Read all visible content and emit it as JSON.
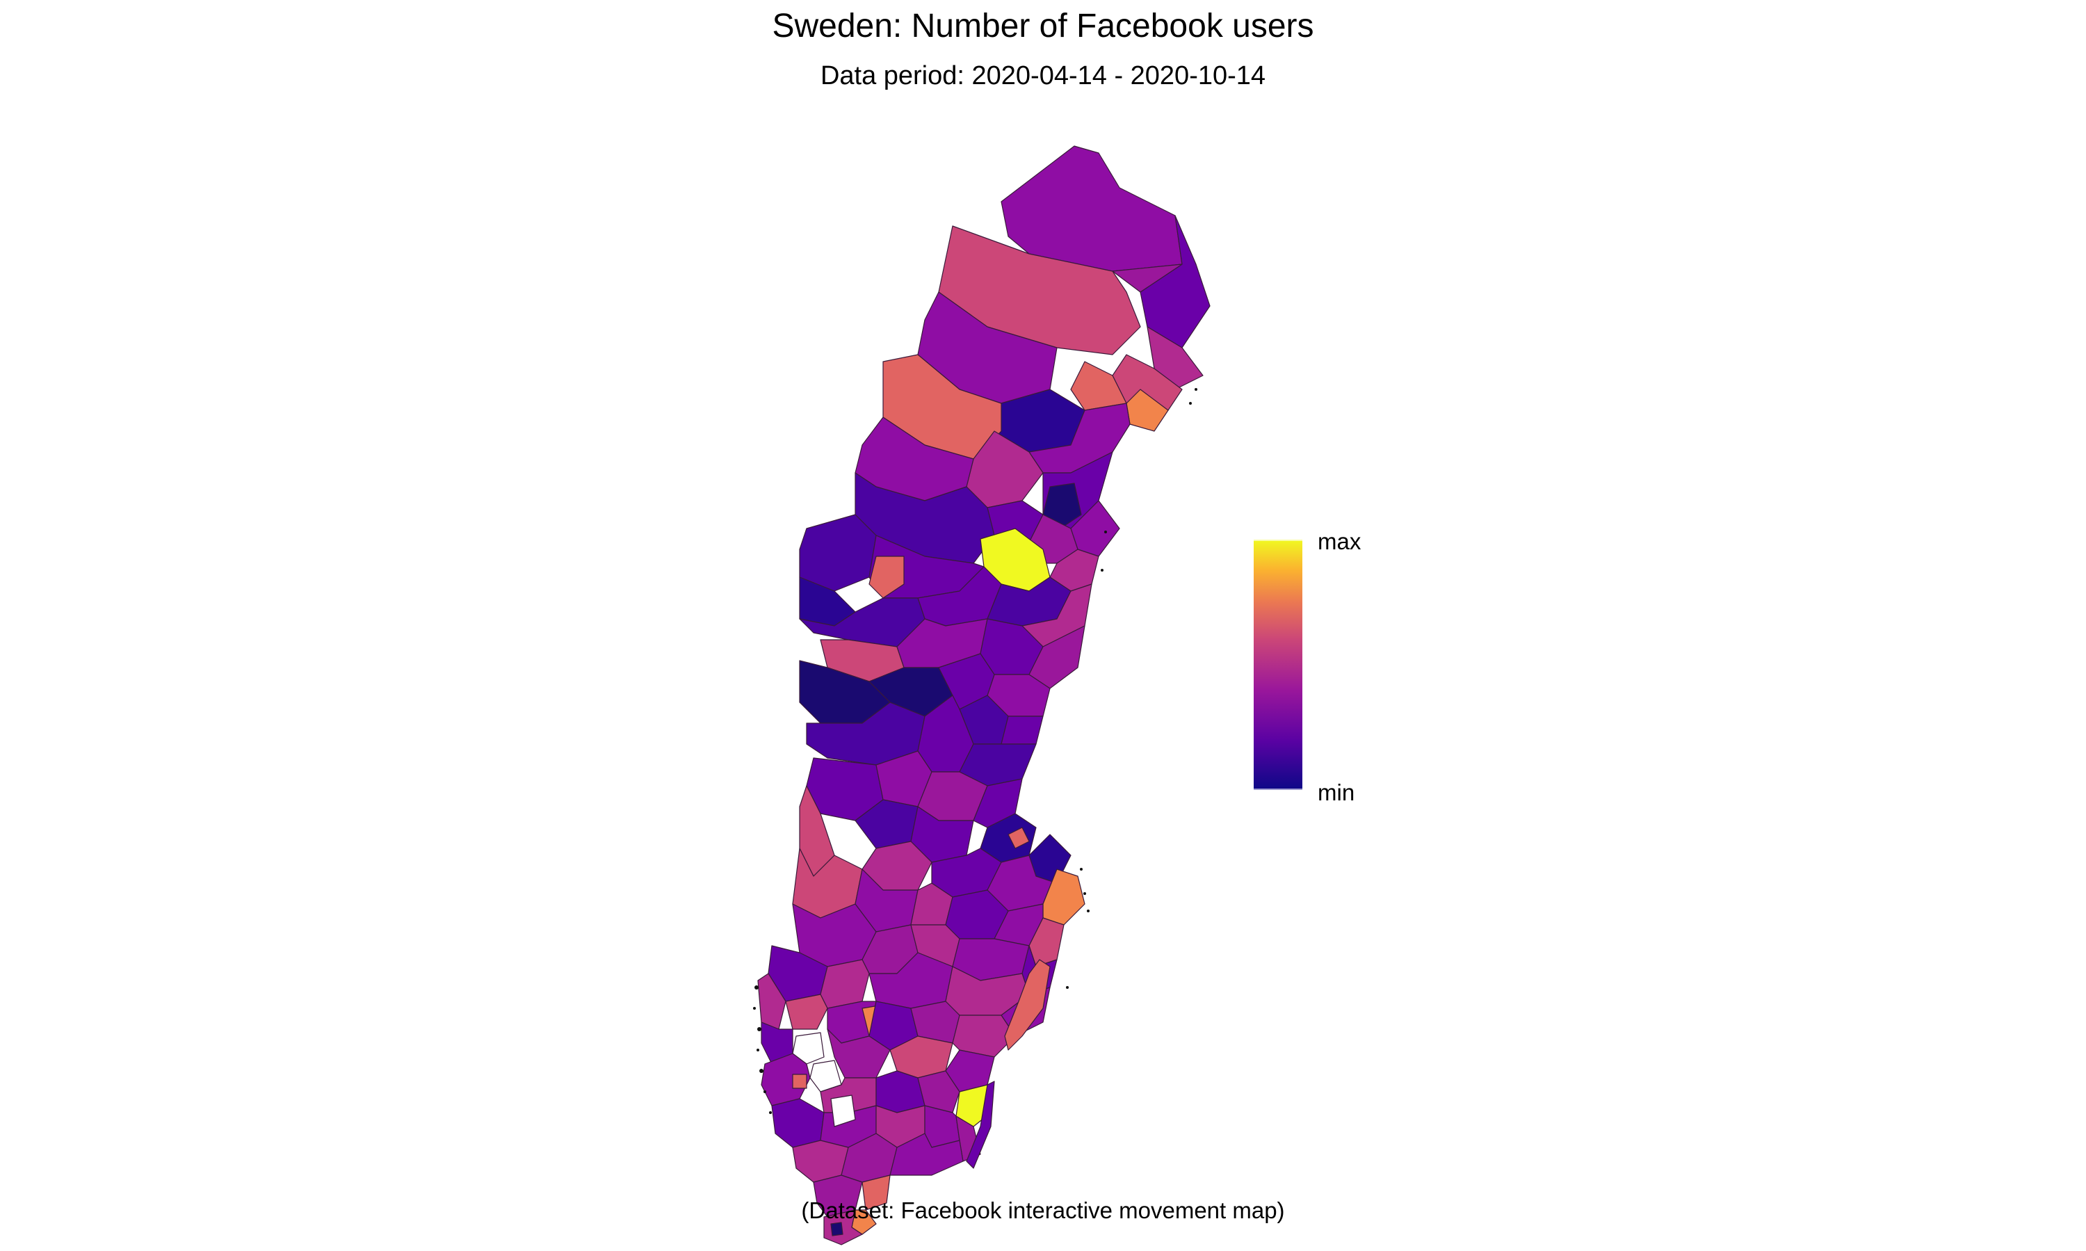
{
  "title": "Sweden: Number of Facebook users",
  "subtitle": "Data period: 2020-04-14 - 2020-10-14",
  "caption": "(Dataset: Facebook interactive movement map)",
  "legend": {
    "max_label": "max",
    "min_label": "min",
    "colors": [
      "#0d0887",
      "#5b02a3",
      "#9a179b",
      "#cb4678",
      "#eb7852",
      "#fbb32f",
      "#f0f921"
    ]
  },
  "map": {
    "country": "Sweden",
    "region_fill_palette": {
      "very_low": "#2a0593",
      "low": "#4b03a1",
      "low_mid": "#6a00a8",
      "mid": "#8f0da4",
      "mid_high": "#b12a90",
      "high": "#cc4778",
      "higher": "#e16462",
      "very_high": "#f2844b",
      "max": "#f0f921",
      "no_data": "#ffffff"
    }
  }
}
